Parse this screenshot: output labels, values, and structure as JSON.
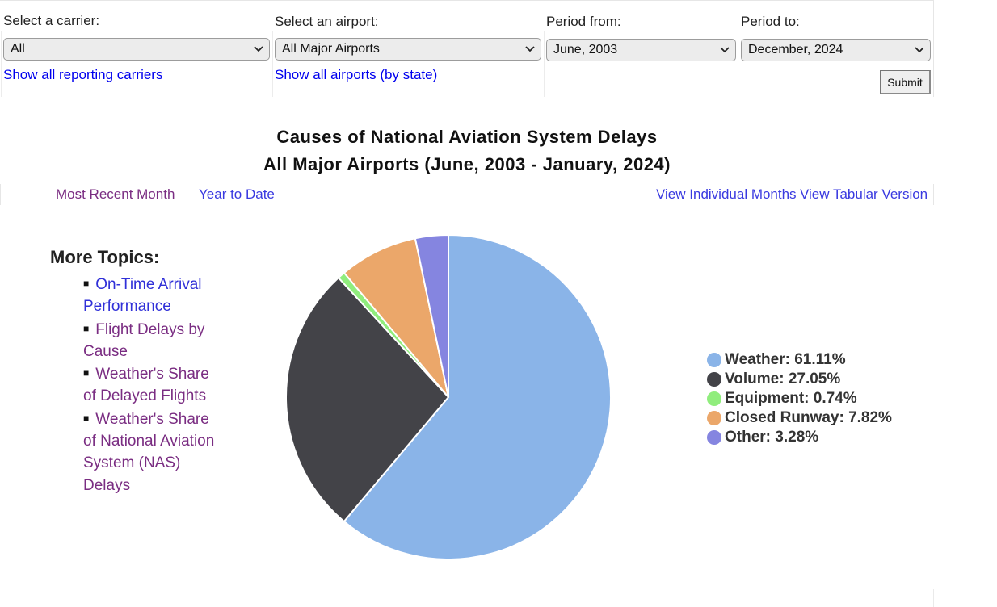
{
  "filters": {
    "carrier": {
      "label": "Select a carrier:",
      "value": "All",
      "link": "Show all reporting carriers"
    },
    "airport": {
      "label": "Select an airport:",
      "value": "All Major Airports",
      "link": "Show all airports (by state)"
    },
    "period_from": {
      "label": "Period from:",
      "value": "June, 2003"
    },
    "period_to": {
      "label": "Period to:",
      "value": "December, 2024"
    },
    "submit_label": "Submit"
  },
  "title": {
    "line1": "Causes of National Aviation System Delays",
    "line2": "All Major Airports (June, 2003 - January, 2024)"
  },
  "views": {
    "most_recent": "Most Recent Month",
    "year_to_date": "Year to Date",
    "individual_months": "View Individual Months",
    "tabular": "View Tabular Version"
  },
  "more_topics": {
    "heading": "More Topics:",
    "items": [
      {
        "label": "On-Time Arrival Performance"
      },
      {
        "label": "Flight Delays by Cause"
      },
      {
        "label": "Weather's Share of Delayed Flights"
      },
      {
        "label": "Weather's Share of National Aviation System (NAS) Delays"
      }
    ]
  },
  "chart_data": {
    "type": "pie",
    "slices": [
      {
        "label": "Weather",
        "value": 61.11,
        "display": "Weather: 61.11%",
        "color": "#8ab4e8"
      },
      {
        "label": "Volume",
        "value": 27.05,
        "display": "Volume: 27.05%",
        "color": "#434348"
      },
      {
        "label": "Equipment",
        "value": 0.74,
        "display": "Equipment: 0.74%",
        "color": "#90ed7d"
      },
      {
        "label": "Closed Runway",
        "value": 7.82,
        "display": "Closed Runway: 7.82%",
        "color": "#eba76a"
      },
      {
        "label": "Other",
        "value": 3.28,
        "display": "Other: 3.28%",
        "color": "#8585e0"
      }
    ],
    "legend_position": "right"
  }
}
